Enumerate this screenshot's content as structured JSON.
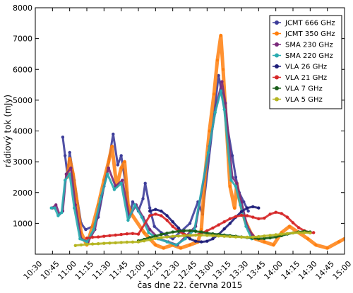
{
  "chart_data": {
    "type": "scatter",
    "title": "",
    "xlabel": "čas dne 22. června 2015",
    "ylabel": "rádiový tok (mJy)",
    "xlim": [
      "10:30",
      "15:00"
    ],
    "ylim": [
      0,
      8000
    ],
    "x_ticks": [
      "10:30",
      "10:45",
      "11:00",
      "11:15",
      "11:30",
      "11:45",
      "12:00",
      "12:15",
      "12:30",
      "12:45",
      "13:00",
      "13:15",
      "13:30",
      "13:45",
      "14:00",
      "14:15",
      "14:30",
      "14:45",
      "15:00"
    ],
    "y_ticks": [
      "1000",
      "2000",
      "3000",
      "4000",
      "5000",
      "6000",
      "7000",
      "8000"
    ],
    "grid": false,
    "legend_position": "top-right",
    "series": [
      {
        "name": "JCMT 666 GHz",
        "color": "#3d3d9a",
        "points": [
          [
            "10:54",
            3800
          ],
          [
            "10:56",
            3200
          ],
          [
            "10:58",
            2600
          ],
          [
            "11:00",
            3300
          ],
          [
            "11:04",
            2400
          ],
          [
            "11:10",
            1000
          ],
          [
            "11:14",
            800
          ],
          [
            "11:20",
            900
          ],
          [
            "11:25",
            1200
          ],
          [
            "11:30",
            2200
          ],
          [
            "11:34",
            3000
          ],
          [
            "11:38",
            3900
          ],
          [
            "11:42",
            2900
          ],
          [
            "11:45",
            3200
          ],
          [
            "11:50",
            2000
          ],
          [
            "11:52",
            1200
          ],
          [
            "11:55",
            1700
          ],
          [
            "12:00",
            1400
          ],
          [
            "12:04",
            1800
          ],
          [
            "12:06",
            2300
          ],
          [
            "12:10",
            1500
          ],
          [
            "12:14",
            900
          ],
          [
            "12:20",
            700
          ],
          [
            "12:30",
            500
          ],
          [
            "12:45",
            1000
          ],
          [
            "12:52",
            1700
          ],
          [
            "12:56",
            1300
          ],
          [
            "13:10",
            5800
          ],
          [
            "13:13",
            5200
          ],
          [
            "13:16",
            4500
          ],
          [
            "13:22",
            3200
          ],
          [
            "13:25",
            2500
          ],
          [
            "13:28",
            2000
          ],
          [
            "13:32",
            1700
          ],
          [
            "13:36",
            1400
          ]
        ]
      },
      {
        "name": "JCMT 350 GHz",
        "color": "#ff7f0e",
        "points": [
          [
            "10:58",
            2500
          ],
          [
            "11:00",
            3100
          ],
          [
            "11:03",
            2600
          ],
          [
            "11:06",
            1800
          ],
          [
            "11:10",
            700
          ],
          [
            "11:15",
            300
          ],
          [
            "11:20",
            900
          ],
          [
            "11:25",
            1600
          ],
          [
            "11:30",
            2400
          ],
          [
            "11:34",
            3000
          ],
          [
            "11:37",
            3500
          ],
          [
            "11:41",
            2200
          ],
          [
            "11:45",
            2800
          ],
          [
            "11:48",
            3000
          ],
          [
            "11:51",
            1600
          ],
          [
            "11:54",
            1300
          ],
          [
            "12:05",
            700
          ],
          [
            "12:10",
            500
          ],
          [
            "12:15",
            300
          ],
          [
            "12:22",
            200
          ],
          [
            "12:30",
            300
          ],
          [
            "12:37",
            200
          ],
          [
            "12:45",
            300
          ],
          [
            "12:52",
            400
          ],
          [
            "12:55",
            800
          ],
          [
            "12:58",
            2500
          ],
          [
            "13:02",
            4000
          ],
          [
            "13:06",
            5200
          ],
          [
            "13:09",
            6300
          ],
          [
            "13:12",
            7100
          ],
          [
            "13:14",
            6000
          ],
          [
            "13:20",
            2200
          ],
          [
            "13:24",
            1500
          ],
          [
            "13:26",
            2300
          ],
          [
            "13:28",
            1800
          ],
          [
            "13:33",
            1100
          ],
          [
            "13:38",
            700
          ],
          [
            "13:42",
            500
          ],
          [
            "13:50",
            400
          ],
          [
            "13:58",
            300
          ],
          [
            "14:05",
            700
          ],
          [
            "14:12",
            900
          ],
          [
            "14:20",
            700
          ],
          [
            "14:28",
            500
          ],
          [
            "14:35",
            300
          ],
          [
            "14:45",
            200
          ],
          [
            "14:55",
            400
          ],
          [
            "15:00",
            500
          ]
        ]
      },
      {
        "name": "SMA 230 GHz",
        "color": "#7a2a7a",
        "points": [
          [
            "10:45",
            1500
          ],
          [
            "10:48",
            1600
          ],
          [
            "10:51",
            1300
          ],
          [
            "10:54",
            1400
          ],
          [
            "10:57",
            2600
          ],
          [
            "11:01",
            2800
          ],
          [
            "11:05",
            1600
          ],
          [
            "11:10",
            500
          ],
          [
            "11:16",
            400
          ],
          [
            "11:22",
            800
          ],
          [
            "11:28",
            1900
          ],
          [
            "11:34",
            2800
          ],
          [
            "11:40",
            2200
          ],
          [
            "11:46",
            2400
          ],
          [
            "11:52",
            1200
          ],
          [
            "11:58",
            1600
          ],
          [
            "12:04",
            1200
          ],
          [
            "12:10",
            800
          ],
          [
            "12:18",
            500
          ],
          [
            "12:26",
            400
          ],
          [
            "12:34",
            300
          ],
          [
            "12:42",
            600
          ],
          [
            "12:50",
            900
          ],
          [
            "13:02",
            3500
          ],
          [
            "13:08",
            4800
          ],
          [
            "13:13",
            5600
          ],
          [
            "13:16",
            4900
          ],
          [
            "13:22",
            2500
          ],
          [
            "13:26",
            2300
          ],
          [
            "13:30",
            1700
          ],
          [
            "13:35",
            900
          ],
          [
            "13:40",
            600
          ]
        ]
      },
      {
        "name": "SMA 220 GHz",
        "color": "#2aabb0",
        "points": [
          [
            "10:44",
            1500
          ],
          [
            "10:47",
            1500
          ],
          [
            "10:50",
            1250
          ],
          [
            "10:53",
            1350
          ],
          [
            "10:56",
            2400
          ],
          [
            "11:00",
            2600
          ],
          [
            "11:04",
            1500
          ],
          [
            "11:09",
            500
          ],
          [
            "11:15",
            400
          ],
          [
            "11:21",
            800
          ],
          [
            "11:27",
            1800
          ],
          [
            "11:33",
            2600
          ],
          [
            "11:39",
            2100
          ],
          [
            "11:45",
            2300
          ],
          [
            "11:51",
            1100
          ],
          [
            "11:57",
            1600
          ],
          [
            "12:03",
            1200
          ],
          [
            "12:09",
            700
          ],
          [
            "12:17",
            500
          ],
          [
            "12:25",
            400
          ],
          [
            "12:33",
            300
          ],
          [
            "12:41",
            500
          ],
          [
            "12:49",
            800
          ],
          [
            "13:01",
            3300
          ],
          [
            "13:07",
            4600
          ],
          [
            "13:12",
            5300
          ],
          [
            "13:15",
            4700
          ],
          [
            "13:21",
            2400
          ],
          [
            "13:25",
            2200
          ],
          [
            "13:29",
            1600
          ],
          [
            "13:34",
            900
          ],
          [
            "13:39",
            500
          ]
        ]
      },
      {
        "name": "VLA 26 GHz",
        "color": "#1f1f7a",
        "points": [
          [
            "12:10",
            1400
          ],
          [
            "12:15",
            1450
          ],
          [
            "12:20",
            1400
          ],
          [
            "12:25",
            1250
          ],
          [
            "12:30",
            1050
          ],
          [
            "12:35",
            850
          ],
          [
            "12:40",
            650
          ],
          [
            "12:45",
            500
          ],
          [
            "12:50",
            420
          ],
          [
            "12:55",
            400
          ],
          [
            "13:00",
            420
          ],
          [
            "13:05",
            500
          ],
          [
            "13:10",
            640
          ],
          [
            "13:15",
            820
          ],
          [
            "13:20",
            1000
          ],
          [
            "13:25",
            1200
          ],
          [
            "13:30",
            1380
          ],
          [
            "13:35",
            1500
          ],
          [
            "13:40",
            1540
          ],
          [
            "13:45",
            1500
          ]
        ]
      },
      {
        "name": "VLA 21 GHz",
        "color": "#d62728",
        "points": [
          [
            "11:15",
            520
          ],
          [
            "11:20",
            550
          ],
          [
            "11:25",
            560
          ],
          [
            "11:30",
            580
          ],
          [
            "11:35",
            600
          ],
          [
            "11:40",
            620
          ],
          [
            "11:45",
            640
          ],
          [
            "11:50",
            660
          ],
          [
            "11:55",
            670
          ],
          [
            "12:00",
            650
          ],
          [
            "12:10",
            1250
          ],
          [
            "12:15",
            1300
          ],
          [
            "12:20",
            1250
          ],
          [
            "12:25",
            1100
          ],
          [
            "12:30",
            900
          ],
          [
            "12:35",
            750
          ],
          [
            "12:40",
            640
          ],
          [
            "12:45",
            600
          ],
          [
            "12:50",
            620
          ],
          [
            "12:55",
            680
          ],
          [
            "13:00",
            760
          ],
          [
            "13:05",
            850
          ],
          [
            "13:10",
            950
          ],
          [
            "13:15",
            1050
          ],
          [
            "13:20",
            1150
          ],
          [
            "13:25",
            1220
          ],
          [
            "13:30",
            1260
          ],
          [
            "13:35",
            1250
          ],
          [
            "13:40",
            1200
          ],
          [
            "13:45",
            1150
          ],
          [
            "13:50",
            1170
          ],
          [
            "13:55",
            1300
          ],
          [
            "14:00",
            1360
          ],
          [
            "14:05",
            1320
          ],
          [
            "14:10",
            1200
          ],
          [
            "14:15",
            1020
          ],
          [
            "14:20",
            860
          ],
          [
            "14:25",
            760
          ],
          [
            "14:30",
            700
          ],
          [
            "14:33",
            700
          ]
        ]
      },
      {
        "name": "VLA 7 GHz",
        "color": "#1a5e1a",
        "points": [
          [
            "12:00",
            430
          ],
          [
            "12:05",
            480
          ],
          [
            "12:10",
            540
          ],
          [
            "12:15",
            590
          ],
          [
            "12:20",
            640
          ],
          [
            "12:25",
            680
          ],
          [
            "12:30",
            720
          ],
          [
            "12:35",
            740
          ],
          [
            "12:40",
            760
          ],
          [
            "12:45",
            760
          ],
          [
            "12:50",
            740
          ],
          [
            "12:55",
            720
          ],
          [
            "13:00",
            680
          ],
          [
            "13:05",
            660
          ],
          [
            "13:10",
            640
          ],
          [
            "13:15",
            620
          ],
          [
            "13:20",
            600
          ],
          [
            "13:25",
            580
          ],
          [
            "13:30",
            560
          ],
          [
            "13:35",
            540
          ],
          [
            "13:40",
            520
          ],
          [
            "13:45",
            500
          ],
          [
            "13:50",
            510
          ],
          [
            "13:55",
            530
          ],
          [
            "14:00",
            560
          ],
          [
            "14:05",
            600
          ],
          [
            "14:10",
            650
          ],
          [
            "14:15",
            690
          ],
          [
            "14:20",
            720
          ],
          [
            "14:25",
            740
          ],
          [
            "14:30",
            720
          ]
        ]
      },
      {
        "name": "VLA 5 GHz",
        "color": "#b5b520",
        "points": [
          [
            "11:05",
            280
          ],
          [
            "11:10",
            300
          ],
          [
            "11:15",
            320
          ],
          [
            "11:20",
            330
          ],
          [
            "11:25",
            340
          ],
          [
            "11:30",
            350
          ],
          [
            "11:35",
            360
          ],
          [
            "11:40",
            370
          ],
          [
            "11:45",
            380
          ],
          [
            "11:50",
            390
          ],
          [
            "11:55",
            395
          ],
          [
            "12:00",
            400
          ],
          [
            "12:05",
            430
          ],
          [
            "12:10",
            470
          ],
          [
            "12:15",
            510
          ],
          [
            "12:20",
            540
          ],
          [
            "12:25",
            560
          ],
          [
            "12:30",
            580
          ],
          [
            "12:35",
            590
          ],
          [
            "12:40",
            600
          ],
          [
            "12:45",
            610
          ],
          [
            "12:50",
            620
          ],
          [
            "12:55",
            620
          ],
          [
            "13:00",
            610
          ],
          [
            "13:05",
            600
          ],
          [
            "13:10",
            590
          ],
          [
            "13:15",
            580
          ],
          [
            "13:20",
            570
          ],
          [
            "13:25",
            560
          ],
          [
            "13:30",
            555
          ],
          [
            "13:35",
            550
          ],
          [
            "13:40",
            555
          ],
          [
            "13:45",
            570
          ],
          [
            "13:50",
            590
          ],
          [
            "13:55",
            610
          ],
          [
            "14:00",
            630
          ],
          [
            "14:05",
            650
          ],
          [
            "14:10",
            670
          ],
          [
            "14:15",
            690
          ],
          [
            "14:20",
            700
          ],
          [
            "14:25",
            700
          ],
          [
            "14:30",
            690
          ]
        ]
      }
    ]
  }
}
